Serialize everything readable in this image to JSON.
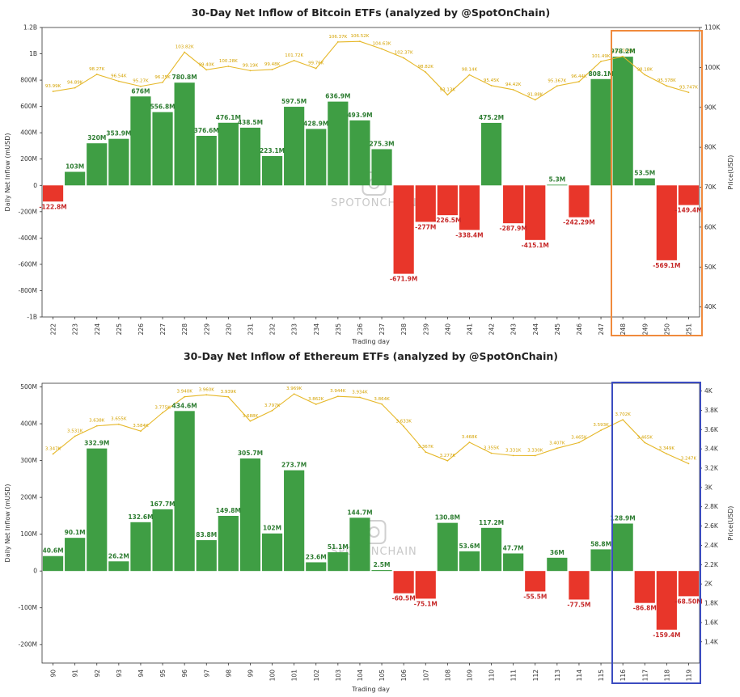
{
  "chart_data": [
    {
      "type": "bar",
      "title": "30-Day Net Inflow of Bitcoin ETFs (analyzed by @SpotOnChain)",
      "xlabel": "Trading day",
      "ylabel": "Daily Net Inflow (mUSD)",
      "y2label": "Price(USD)",
      "ylim": [
        -1000,
        1200
      ],
      "y2lim": [
        37500,
        110000
      ],
      "yticks": [
        -1000,
        -800,
        -600,
        -400,
        -200,
        0,
        200,
        400,
        600,
        800,
        1000,
        1200
      ],
      "ytick_labels": [
        "-1B",
        "-800M",
        "-600M",
        "-400M",
        "-200M",
        "0",
        "200M",
        "400M",
        "600M",
        "800M",
        "1B",
        "1.2B"
      ],
      "y2ticks": [
        40000,
        50000,
        60000,
        70000,
        80000,
        90000,
        100000,
        110000
      ],
      "y2tick_labels": [
        "40K",
        "50K",
        "60K",
        "70K",
        "80K",
        "90K",
        "100K",
        "110K"
      ],
      "categories": [
        "222",
        "223",
        "224",
        "225",
        "226",
        "227",
        "228",
        "229",
        "230",
        "231",
        "232",
        "233",
        "234",
        "235",
        "236",
        "237",
        "238",
        "239",
        "240",
        "241",
        "242",
        "243",
        "244",
        "245",
        "246",
        "247",
        "248",
        "249",
        "250",
        "251"
      ],
      "values": [
        -122.8,
        103,
        320,
        353.9,
        676,
        556.8,
        780.8,
        376.6,
        476.1,
        438.5,
        223.1,
        597.5,
        428.9,
        636.9,
        493.9,
        275.3,
        -671.9,
        -277,
        -226.5,
        -338.4,
        475.2,
        -287.9,
        -415.1,
        5.3,
        -242.29,
        808.1,
        978.2,
        53.5,
        -569.1,
        -149.4
      ],
      "value_labels": [
        "-122.8M",
        "103M",
        "320M",
        "353.9M",
        "676M",
        "556.8M",
        "780.8M",
        "376.6M",
        "476.1M",
        "438.5M",
        "223.1M",
        "597.5M",
        "428.9M",
        "636.9M",
        "493.9M",
        "275.3M",
        "-671.9M",
        "-277M",
        "-226.5M",
        "-338.4M",
        "475.2M",
        "-287.9M",
        "-415.1M",
        "5.3M",
        "-242.29M",
        "808.1M",
        "978.2M",
        "53.5M",
        "-569.1M",
        "-149.4M"
      ],
      "price": [
        93990,
        94890,
        98270,
        96540,
        95270,
        96250,
        103820,
        99400,
        100280,
        99190,
        99480,
        101720,
        99760,
        106370,
        106520,
        104630,
        102370,
        98820,
        93130,
        98140,
        95450,
        94420,
        91880,
        95367,
        96440,
        101490,
        102763,
        98180,
        95378,
        93747
      ],
      "price_labels": [
        "93.99K",
        "94.89K",
        "98.27K",
        "96.54K",
        "95.27K",
        "96.25K",
        "103.82K",
        "99.40K",
        "100.28K",
        "99.19K",
        "99.48K",
        "101.72K",
        "99.76K",
        "106.37K",
        "106.52K",
        "104.63K",
        "102.37K",
        "98.82K",
        "93.13K",
        "98.14K",
        "95.45K",
        "94.42K",
        "91.88K",
        "95.367K",
        "96.44K",
        "101.49K",
        "102.763K",
        "98.18K",
        "95.378K",
        "93.747K"
      ],
      "highlight": {
        "from": "248",
        "to": "251",
        "color": "#f08a3c"
      },
      "colors": {
        "positive": "#3f9e44",
        "negative": "#e8362a",
        "price": "#e6b829",
        "positive_text": "#2e7d32",
        "negative_text": "#c62828"
      }
    },
    {
      "type": "bar",
      "title": "30-Day Net Inflow of Ethereum ETFs (analyzed by @SpotOnChain)",
      "xlabel": "Trading day",
      "ylabel": "Daily Net Inflow (mUSD)",
      "y2label": "Price(USD)",
      "ylim": [
        -250,
        510
      ],
      "y2lim": [
        1180,
        4080
      ],
      "yticks": [
        -200,
        -100,
        0,
        100,
        200,
        300,
        400,
        500
      ],
      "ytick_labels": [
        "-200M",
        "-100M",
        "0",
        "100M",
        "200M",
        "300M",
        "400M",
        "500M"
      ],
      "y2ticks": [
        1400,
        1600,
        1800,
        2000,
        2200,
        2400,
        2600,
        2800,
        3000,
        3200,
        3400,
        3600,
        3800,
        4000
      ],
      "y2tick_labels": [
        "1.4K",
        "1.6K",
        "1.8K",
        "2K",
        "2.2K",
        "2.4K",
        "2.6K",
        "2.8K",
        "3K",
        "3.2K",
        "3.4K",
        "3.6K",
        "3.8K",
        "4K"
      ],
      "categories": [
        "90",
        "91",
        "92",
        "93",
        "94",
        "95",
        "96",
        "97",
        "98",
        "99",
        "100",
        "101",
        "102",
        "103",
        "104",
        "105",
        "106",
        "107",
        "108",
        "109",
        "110",
        "111",
        "112",
        "113",
        "114",
        "115",
        "116",
        "117",
        "118",
        "119"
      ],
      "values": [
        40.6,
        90.1,
        332.9,
        26.2,
        132.6,
        167.7,
        434.6,
        83.8,
        149.8,
        305.7,
        102,
        273.7,
        23.6,
        51.1,
        144.7,
        2.5,
        -60.5,
        -75.1,
        130.8,
        53.6,
        117.2,
        47.7,
        -55.5,
        36,
        -77.5,
        58.8,
        128.9,
        -86.8,
        -159.4,
        -68.5
      ],
      "value_labels": [
        "40.6M",
        "90.1M",
        "332.9M",
        "26.2M",
        "132.6M",
        "167.7M",
        "434.6M",
        "83.8M",
        "149.8M",
        "305.7M",
        "102M",
        "273.7M",
        "23.6M",
        "51.1M",
        "144.7M",
        "2.5M",
        "-60.5M",
        "-75.1M",
        "130.8M",
        "53.6M",
        "117.2M",
        "47.7M",
        "-55.5M",
        "36M",
        "-77.5M",
        "58.8M",
        "128.9M",
        "-86.8M",
        "-159.4M",
        "-68.50M"
      ],
      "price": [
        3347,
        3531,
        3638,
        3655,
        3584,
        3775,
        3940,
        3960,
        3939,
        3688,
        3797,
        3969,
        3862,
        3944,
        3934,
        3864,
        3633,
        3367,
        3277,
        3468,
        3355,
        3331,
        3330,
        3407,
        3465,
        3593,
        3702,
        3465,
        3349,
        3247
      ],
      "price_labels": [
        "3.347K",
        "3.531K",
        "3.638K",
        "3.655K",
        "3.584K",
        "3.775K",
        "3.940K",
        "3.960K",
        "3.939K",
        "3.688K",
        "3.797K",
        "3.969K",
        "3.862K",
        "3.944K",
        "3.934K",
        "3.864K",
        "3.633K",
        "3.367K",
        "3.277K",
        "3.468K",
        "3.355K",
        "3.331K",
        "3.330K",
        "3.407K",
        "3.465K",
        "3.593K",
        "3.702K",
        "3.465K",
        "3.349K",
        "3.247K"
      ],
      "highlight": {
        "from": "116",
        "to": "119",
        "color": "#3b4cc0"
      },
      "colors": {
        "positive": "#3f9e44",
        "negative": "#e8362a",
        "price": "#e6b829",
        "positive_text": "#2e7d32",
        "negative_text": "#c62828"
      }
    }
  ],
  "watermark": {
    "brand": "SPOTONCHAIN"
  }
}
